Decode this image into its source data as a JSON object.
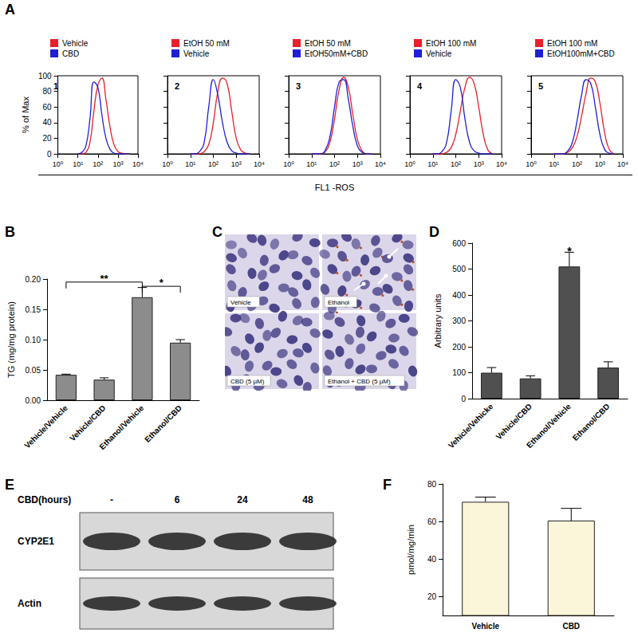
{
  "panel_labels": [
    "A",
    "B",
    "C",
    "D",
    "E",
    "F"
  ],
  "chart_data": [
    {
      "type": "line",
      "title": "1",
      "log": "x",
      "grid": false,
      "ylabel": "% of Max",
      "x": [
        10,
        16,
        25,
        40,
        63,
        100,
        158,
        251,
        398,
        631,
        1000,
        1585,
        2512,
        3981
      ],
      "series": [
        {
          "name": "Vehicle",
          "color": "#e8202a",
          "values": [
            0,
            0,
            2,
            15,
            55,
            88,
            97,
            70,
            35,
            12,
            3,
            1,
            0,
            0
          ]
        },
        {
          "name": "CBD",
          "color": "#1f1fd6",
          "values": [
            0,
            2,
            10,
            45,
            92,
            85,
            50,
            20,
            6,
            1,
            0,
            0,
            0,
            0
          ]
        }
      ],
      "xlim": [
        1,
        10000
      ],
      "xticks": [
        {
          "value": 1,
          "label": "10⁰"
        },
        {
          "value": 10,
          "label": "10¹"
        },
        {
          "value": 100,
          "label": "10²"
        },
        {
          "value": 1000,
          "label": "10³"
        },
        {
          "value": 10000,
          "label": "10⁴"
        }
      ],
      "ylim": [
        0,
        100
      ],
      "yticks": [
        0,
        20,
        40,
        60,
        80,
        100
      ]
    },
    {
      "type": "line",
      "title": "2",
      "log": "x",
      "grid": false,
      "tick_labels": "x",
      "x": [
        10,
        16,
        25,
        40,
        63,
        100,
        158,
        251,
        398,
        631,
        1000,
        1585,
        2512,
        3981
      ],
      "series": [
        {
          "name": "EtOH 50 mM",
          "color": "#e8202a",
          "values": [
            0,
            0,
            0,
            3,
            12,
            40,
            80,
            97,
            90,
            55,
            20,
            5,
            1,
            0
          ]
        },
        {
          "name": "Vehicle",
          "color": "#1f1fd6",
          "values": [
            0,
            0,
            3,
            15,
            60,
            95,
            75,
            40,
            15,
            4,
            1,
            0,
            0,
            0
          ]
        }
      ],
      "xlim": [
        1,
        10000
      ],
      "xticks": [
        {
          "value": 1,
          "label": "10⁰"
        },
        {
          "value": 10,
          "label": "10¹"
        },
        {
          "value": 100,
          "label": "10²"
        },
        {
          "value": 1000,
          "label": "10³"
        },
        {
          "value": 10000,
          "label": "10⁴"
        }
      ],
      "ylim": [
        0,
        100
      ],
      "yticks": [
        0,
        20,
        40,
        60,
        80,
        100
      ]
    },
    {
      "type": "line",
      "title": "3",
      "log": "x",
      "grid": false,
      "tick_labels": "x",
      "xlabel": "FL1 -ROS",
      "x": [
        10,
        16,
        25,
        40,
        63,
        100,
        158,
        251,
        398,
        631,
        1000,
        1585,
        2512,
        3981
      ],
      "series": [
        {
          "name": "EtOH 50 mM",
          "color": "#e8202a",
          "values": [
            0,
            0,
            0,
            3,
            15,
            45,
            82,
            98,
            85,
            50,
            18,
            4,
            0,
            0
          ]
        },
        {
          "name": "EtOH50mM+CBD",
          "color": "#1f1fd6",
          "values": [
            0,
            0,
            0,
            5,
            22,
            60,
            92,
            95,
            70,
            35,
            10,
            2,
            0,
            0
          ]
        }
      ],
      "xlim": [
        1,
        10000
      ],
      "xticks": [
        {
          "value": 1,
          "label": "10⁰"
        },
        {
          "value": 10,
          "label": "10¹"
        },
        {
          "value": 100,
          "label": "10²"
        },
        {
          "value": 1000,
          "label": "10³"
        },
        {
          "value": 10000,
          "label": "10⁴"
        }
      ],
      "ylim": [
        0,
        100
      ],
      "yticks": [
        0,
        20,
        40,
        60,
        80,
        100
      ]
    },
    {
      "type": "line",
      "title": "4",
      "log": "x",
      "grid": false,
      "tick_labels": "x",
      "x": [
        10,
        16,
        25,
        40,
        63,
        100,
        158,
        251,
        398,
        631,
        1000,
        1585,
        2512,
        3981
      ],
      "series": [
        {
          "name": "EtOH 100 mM",
          "color": "#e8202a",
          "values": [
            0,
            0,
            0,
            2,
            8,
            25,
            55,
            85,
            98,
            90,
            60,
            25,
            5,
            0
          ]
        },
        {
          "name": "Vehicle",
          "color": "#1f1fd6",
          "values": [
            0,
            0,
            3,
            15,
            55,
            95,
            85,
            45,
            15,
            4,
            1,
            0,
            0,
            0
          ]
        }
      ],
      "xlim": [
        1,
        10000
      ],
      "xticks": [
        {
          "value": 1,
          "label": "10⁰"
        },
        {
          "value": 10,
          "label": "10¹"
        },
        {
          "value": 100,
          "label": "10²"
        },
        {
          "value": 1000,
          "label": "10³"
        },
        {
          "value": 10000,
          "label": "10⁴"
        }
      ],
      "ylim": [
        0,
        100
      ],
      "yticks": [
        0,
        20,
        40,
        60,
        80,
        100
      ]
    },
    {
      "type": "line",
      "title": "5",
      "log": "x",
      "grid": false,
      "tick_labels": "x",
      "x": [
        10,
        16,
        25,
        40,
        63,
        100,
        158,
        251,
        398,
        631,
        1000,
        1585,
        2512,
        3981
      ],
      "series": [
        {
          "name": "EtOH 100 mM",
          "color": "#e8202a",
          "values": [
            0,
            0,
            0,
            2,
            8,
            22,
            48,
            78,
            97,
            92,
            65,
            28,
            6,
            0
          ]
        },
        {
          "name": "EtOH100mM+CBD",
          "color": "#1f1fd6",
          "values": [
            0,
            0,
            0,
            4,
            15,
            42,
            75,
            95,
            90,
            60,
            25,
            6,
            1,
            0
          ]
        }
      ],
      "xlim": [
        1,
        10000
      ],
      "xticks": [
        {
          "value": 1,
          "label": "10⁰"
        },
        {
          "value": 10,
          "label": "10¹"
        },
        {
          "value": 100,
          "label": "10²"
        },
        {
          "value": 1000,
          "label": "10³"
        },
        {
          "value": 10000,
          "label": "10⁴"
        }
      ],
      "ylim": [
        0,
        100
      ],
      "yticks": [
        0,
        20,
        40,
        60,
        80,
        100
      ]
    },
    {
      "type": "bar",
      "grid": false,
      "ylabel": "TG (mg/mg protein)",
      "color": "#8c8c8c",
      "categories": [
        "Vehicle/Vehicle",
        "Vehicle/CBD",
        "Ethanol/Vehicle",
        "Ethanol/CBD"
      ],
      "values": [
        0.042,
        0.034,
        0.17,
        0.095
      ],
      "errors": [
        0.001,
        0.003,
        0.016,
        0.005
      ],
      "ylim": [
        0,
        0.2
      ],
      "yticks": [
        {
          "value": 0,
          "label": "0.00"
        },
        {
          "value": 0.05,
          "label": "0.05"
        },
        {
          "value": 0.1,
          "label": "0.10"
        },
        {
          "value": 0.15,
          "label": "0.15"
        },
        {
          "value": 0.2,
          "label": "0.20"
        }
      ],
      "annotations": [
        {
          "text": "**",
          "from": 0,
          "to": 2,
          "y": 0.195
        },
        {
          "text": "*",
          "from": 2,
          "to": 3,
          "y": 0.188
        }
      ]
    },
    {
      "type": "bar",
      "grid": false,
      "ylabel": "Arbitrary units",
      "color": "#505050",
      "categories": [
        "Vehicle/Vehicke",
        "Vehicle/CBD",
        "Ethanol/Vehicle",
        "Ethanol/CBD"
      ],
      "values": [
        100,
        78,
        510,
        120
      ],
      "errors": [
        20,
        10,
        55,
        22
      ],
      "ylim": [
        0,
        600
      ],
      "yticks": [
        0,
        100,
        200,
        300,
        400,
        500,
        600
      ],
      "annotations": [
        {
          "text": "*",
          "x": 2,
          "y": 570
        }
      ]
    },
    {
      "type": "bar",
      "grid": false,
      "ylabel": "pmol/mg/min",
      "color": "#fbf5d9",
      "categories": [
        "Vehicle",
        "CBD"
      ],
      "values": [
        70.5,
        60.5
      ],
      "errors": [
        2.5,
        6.5
      ],
      "ylim": [
        10,
        80
      ],
      "yticks": [
        20,
        40,
        60,
        80
      ]
    }
  ],
  "micrographs": {
    "labels": [
      "Vehicle",
      "Ethanol",
      "CBD (5 µM)",
      "Ethanol + CBD (5 µM)"
    ]
  },
  "western_blot": {
    "row_title": "CBD(hours)",
    "lanes": [
      "-",
      "6",
      "24",
      "48"
    ],
    "bands": [
      "CYP2E1",
      "Actin"
    ]
  }
}
